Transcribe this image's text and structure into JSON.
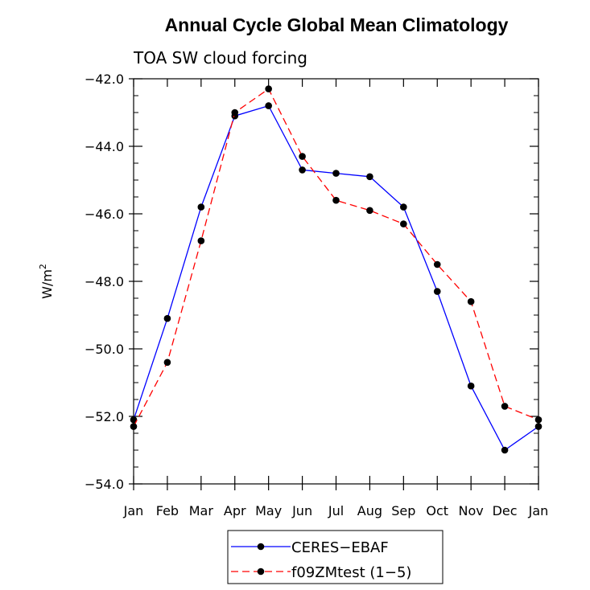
{
  "chart_data": {
    "type": "line",
    "title": "Annual Cycle Global Mean Climatology",
    "subtitle": "TOA SW cloud forcing",
    "ylabel": "W/m",
    "ylabel_sup": "2",
    "xlabel": "",
    "categories": [
      "Jan",
      "Feb",
      "Mar",
      "Apr",
      "May",
      "Jun",
      "Jul",
      "Aug",
      "Sep",
      "Oct",
      "Nov",
      "Dec",
      "Jan"
    ],
    "ylim": [
      -54.0,
      -42.0
    ],
    "yticks": [
      -54.0,
      -52.0,
      -50.0,
      -48.0,
      -46.0,
      -44.0,
      -42.0
    ],
    "ytick_labels": [
      "−54.0",
      "−52.0",
      "−50.0",
      "−48.0",
      "−46.0",
      "−44.0",
      "−42.0"
    ],
    "grid": false,
    "legend_position": "bottom-center",
    "series": [
      {
        "name": "CERES−EBAF",
        "color": "#0000ff",
        "dash": "solid",
        "values": [
          -52.1,
          -49.1,
          -45.8,
          -43.1,
          -42.8,
          -44.7,
          -44.8,
          -44.9,
          -45.8,
          -48.3,
          -51.1,
          -53.0,
          -52.3
        ]
      },
      {
        "name": "f09ZMtest (1−5)",
        "color": "#ff0000",
        "dash": "dashed",
        "values": [
          -52.3,
          -50.4,
          -46.8,
          -43.0,
          -42.3,
          -44.3,
          -45.6,
          -45.9,
          -46.3,
          -47.5,
          -48.6,
          -51.7,
          -52.1
        ]
      }
    ]
  }
}
